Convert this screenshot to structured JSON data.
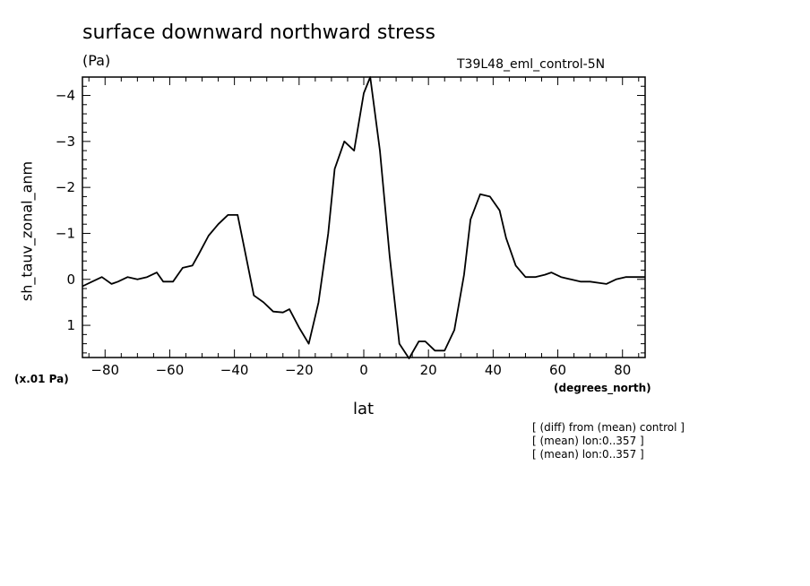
{
  "chart_data": {
    "type": "line",
    "title": "surface downward northward stress",
    "units": "(Pa)",
    "run_label": "T39L48_eml_control-5N",
    "scale_label": "(x.01 Pa)",
    "xlabel": "lat",
    "xunits": "(degrees_north)",
    "ylabel": "sh_tauv_zonal_anm",
    "xlim": [
      -87,
      87
    ],
    "ylim": [
      1.7,
      -4.4
    ],
    "y_axis_inverted": true,
    "xticks": [
      -80,
      -60,
      -40,
      -20,
      0,
      20,
      40,
      60,
      80
    ],
    "yticks": [
      -4,
      -3,
      -2,
      -1,
      0,
      1
    ],
    "series": [
      {
        "x": [
          -87,
          -84,
          -81,
          -78,
          -76,
          -73,
          -70,
          -67,
          -64,
          -62,
          -59,
          -56,
          -53,
          -51,
          -48,
          -45,
          -42,
          -39,
          -37,
          -34,
          -31,
          -28,
          -25,
          -23,
          -20,
          -17,
          -14,
          -11,
          -9,
          -6,
          -3,
          0,
          2,
          5,
          8,
          11,
          14,
          17,
          19,
          22,
          25,
          28,
          31,
          33,
          36,
          39,
          42,
          44,
          47,
          50,
          53,
          56,
          58,
          61,
          64,
          67,
          70,
          73,
          75,
          78,
          81,
          84,
          87
        ],
        "y": [
          0.15,
          0.05,
          -0.05,
          0.1,
          0.05,
          -0.05,
          0,
          -0.05,
          -0.15,
          0.05,
          0.05,
          -0.25,
          -0.3,
          -0.55,
          -0.95,
          -1.2,
          -1.4,
          -1.4,
          -0.7,
          0.35,
          0.5,
          0.7,
          0.72,
          0.65,
          1.05,
          1.4,
          0.5,
          -1.0,
          -2.4,
          -3.0,
          -2.8,
          -4.05,
          -4.4,
          -2.8,
          -0.5,
          1.4,
          1.72,
          1.35,
          1.35,
          1.55,
          1.55,
          1.1,
          -0.1,
          -1.3,
          -1.85,
          -1.8,
          -1.5,
          -0.9,
          -0.3,
          -0.05,
          -0.05,
          -0.1,
          -0.15,
          -0.05,
          0,
          0.05,
          0.05,
          0.08,
          0.1,
          0,
          -0.05,
          -0.05,
          -0.05
        ]
      }
    ]
  },
  "notes": [
    "[ (diff) from (mean) control ]",
    "[ (mean) lon:0..357 ]",
    "[ (mean) lon:0..357 ]"
  ]
}
